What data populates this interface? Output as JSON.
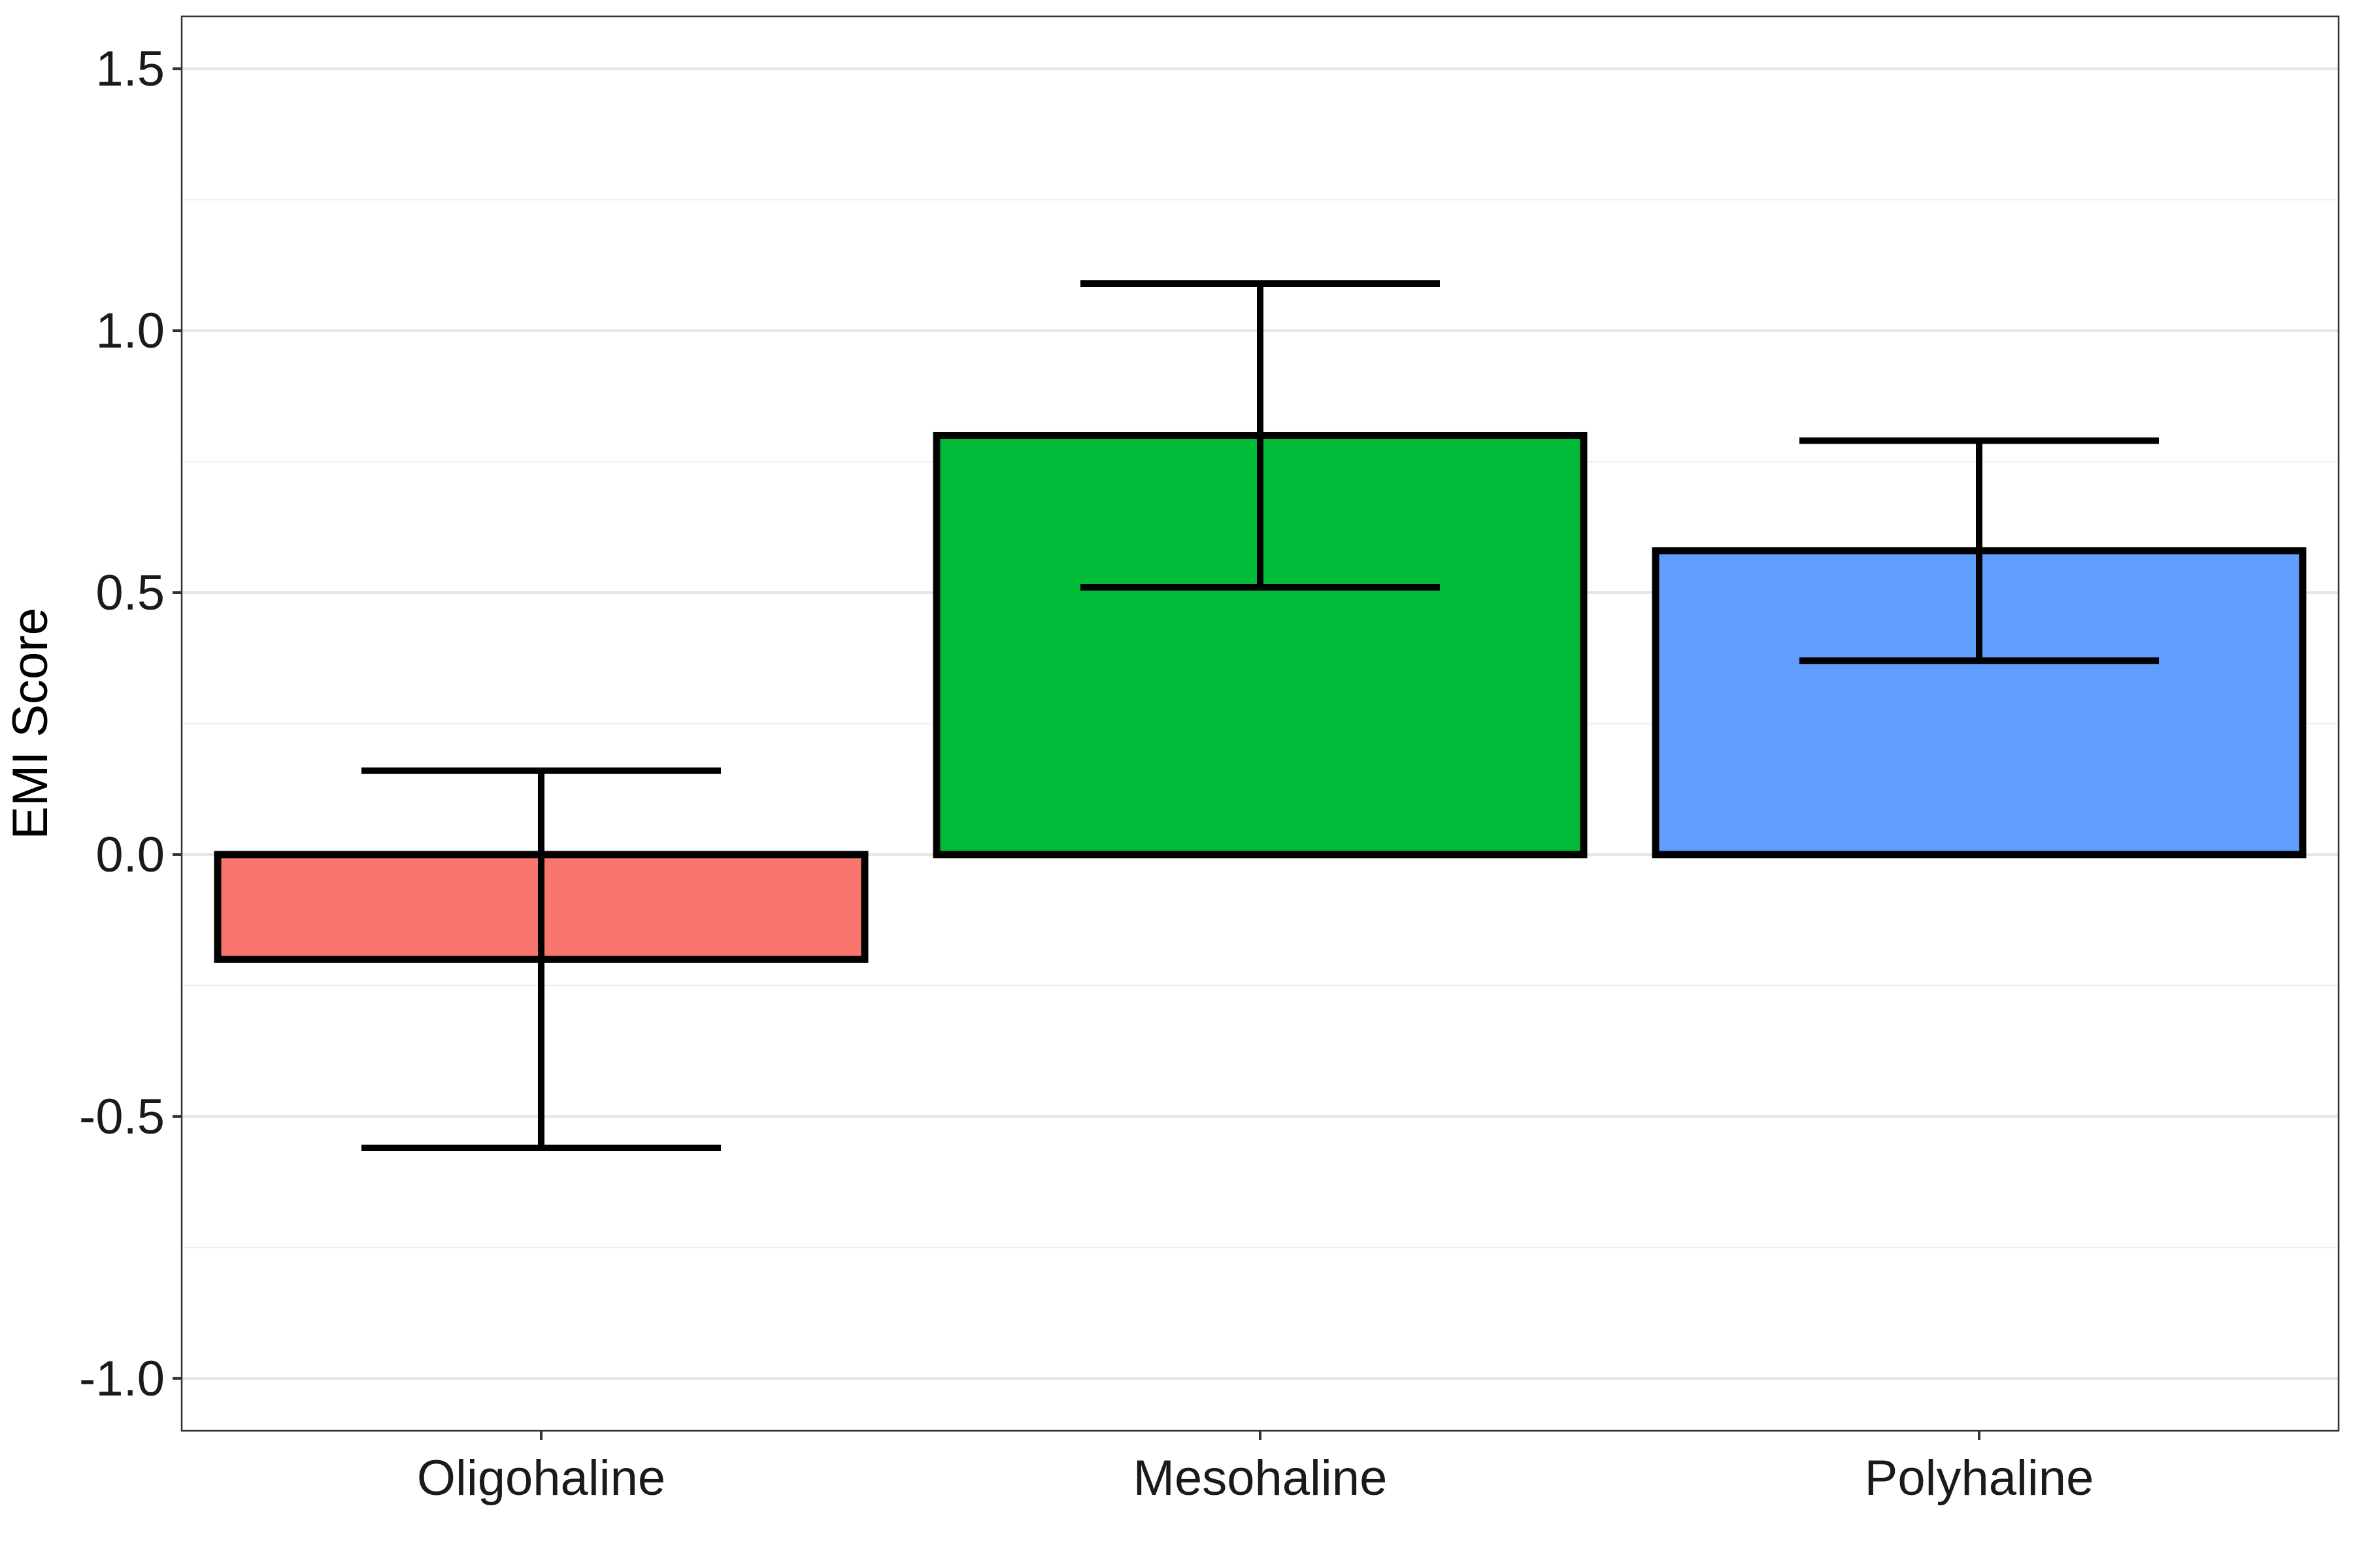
{
  "chart_data": {
    "type": "bar",
    "title": "",
    "xlabel": "",
    "ylabel": "EMI Score",
    "categories": [
      "Oligohaline",
      "Mesohaline",
      "Polyhaline"
    ],
    "values": [
      -0.2,
      0.8,
      0.58
    ],
    "error_low": [
      -0.56,
      0.51,
      0.37
    ],
    "error_high": [
      0.16,
      1.09,
      0.79
    ],
    "colors": [
      "#F8766D",
      "#00BA38",
      "#619CFF"
    ],
    "ylim": [
      -1.1,
      1.6
    ],
    "y_ticks": [
      -1.0,
      -0.5,
      0.0,
      0.5,
      1.0,
      1.5
    ],
    "y_tick_labels": [
      "-1.0",
      "-0.5",
      "0.0",
      "0.5",
      "1.0",
      "1.5"
    ],
    "grid": true,
    "legend": "none"
  }
}
